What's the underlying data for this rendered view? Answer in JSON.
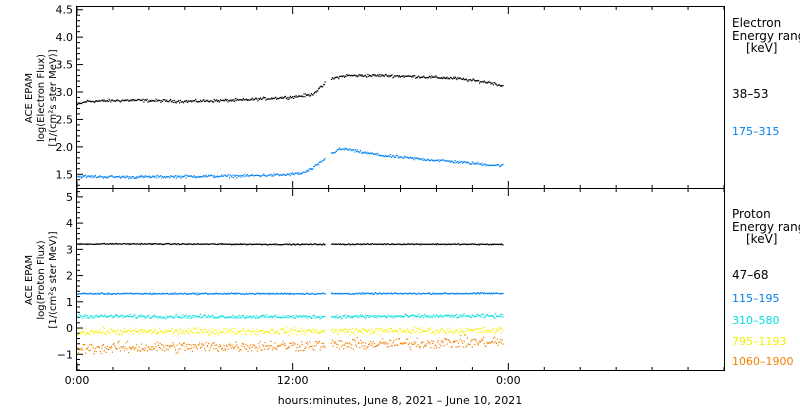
{
  "chart_data": [
    {
      "type": "scatter",
      "panel": "electron",
      "ylabel_lines": [
        "ACE EPAM",
        "log(Electron Flux)",
        "[1/(cm²s ster MeV)]"
      ],
      "ylim": [
        1.25,
        4.55
      ],
      "yticks": [
        1.5,
        2.0,
        2.5,
        3.0,
        3.5,
        4.0,
        4.5
      ],
      "ytick_labels": [
        "1.5",
        "2.0",
        "2.5",
        "3.0",
        "3.5",
        "4.0",
        "4.5"
      ],
      "legend_title_lines": [
        "Electron",
        "Energy ranges",
        "[keV]"
      ],
      "series": [
        {
          "name": "38–53",
          "color": "#000000",
          "profile": [
            [
              0.0,
              2.78
            ],
            [
              0.5,
              2.84
            ],
            [
              3.0,
              2.86
            ],
            [
              6.0,
              2.84
            ],
            [
              9.0,
              2.86
            ],
            [
              11.0,
              2.9
            ],
            [
              12.0,
              2.92
            ],
            [
              13.0,
              2.96
            ],
            [
              13.5,
              3.08
            ],
            [
              14.0,
              3.24
            ],
            [
              14.5,
              3.28
            ],
            [
              15.0,
              3.31
            ],
            [
              17.0,
              3.31
            ],
            [
              19.0,
              3.29
            ],
            [
              21.0,
              3.26
            ],
            [
              23.0,
              3.18
            ],
            [
              23.7,
              3.12
            ]
          ],
          "noise": 0.022
        },
        {
          "name": "175–315",
          "color": "#0080f0",
          "profile": [
            [
              0.0,
              1.47
            ],
            [
              3.0,
              1.46
            ],
            [
              6.0,
              1.47
            ],
            [
              9.0,
              1.48
            ],
            [
              11.5,
              1.5
            ],
            [
              12.5,
              1.53
            ],
            [
              13.0,
              1.6
            ],
            [
              13.5,
              1.72
            ],
            [
              14.0,
              1.86
            ],
            [
              14.5,
              1.96
            ],
            [
              15.0,
              1.97
            ],
            [
              15.5,
              1.93
            ],
            [
              17.0,
              1.85
            ],
            [
              19.0,
              1.79
            ],
            [
              21.0,
              1.74
            ],
            [
              23.0,
              1.68
            ],
            [
              23.7,
              1.67
            ]
          ],
          "noise": 0.022
        }
      ]
    },
    {
      "type": "scatter",
      "panel": "proton",
      "ylabel_lines": [
        "ACE EPAM",
        "log(Proton Flux)",
        "[1/(cm²s ster MeV)]"
      ],
      "ylim": [
        -1.6,
        5.3
      ],
      "yticks": [
        -1,
        0,
        1,
        2,
        3,
        4,
        5
      ],
      "ytick_labels": [
        "−1",
        "0",
        "1",
        "2",
        "3",
        "4",
        "5"
      ],
      "legend_title_lines": [
        "Proton",
        "Energy ranges",
        "[keV]"
      ],
      "series": [
        {
          "name": "47–68",
          "color": "#000000",
          "profile": [
            [
              0.0,
              3.22
            ],
            [
              2.0,
              3.23
            ],
            [
              12.0,
              3.21
            ],
            [
              18.0,
              3.22
            ],
            [
              23.7,
              3.21
            ]
          ],
          "noise": 0.018
        },
        {
          "name": "115–195",
          "color": "#0080f0",
          "profile": [
            [
              0.0,
              1.33
            ],
            [
              12.0,
              1.33
            ],
            [
              23.7,
              1.34
            ]
          ],
          "noise": 0.025
        },
        {
          "name": "310–580",
          "color": "#00e0e0",
          "profile": [
            [
              0.0,
              0.47
            ],
            [
              12.0,
              0.45
            ],
            [
              23.7,
              0.48
            ]
          ],
          "noise": 0.06
        },
        {
          "name": "795–1193",
          "color": "#f0f000",
          "profile": [
            [
              0.0,
              -0.12
            ],
            [
              12.0,
              -0.1
            ],
            [
              23.7,
              -0.08
            ]
          ],
          "noise": 0.11
        },
        {
          "name": "1060–1900",
          "color": "#f08000",
          "profile": [
            [
              0.0,
              -0.75
            ],
            [
              12.0,
              -0.65
            ],
            [
              23.7,
              -0.5
            ]
          ],
          "noise": 0.18
        }
      ]
    }
  ],
  "x_axis": {
    "xlim": [
      0,
      36
    ],
    "ticks": [
      0,
      12,
      24
    ],
    "tick_labels": [
      "0:00",
      "12:00",
      "0:00"
    ],
    "minor_step": 2,
    "data_gap": [
      13.8,
      14.1
    ],
    "xlabel": "hours:minutes, June  8, 2021 – June 10, 2021"
  }
}
